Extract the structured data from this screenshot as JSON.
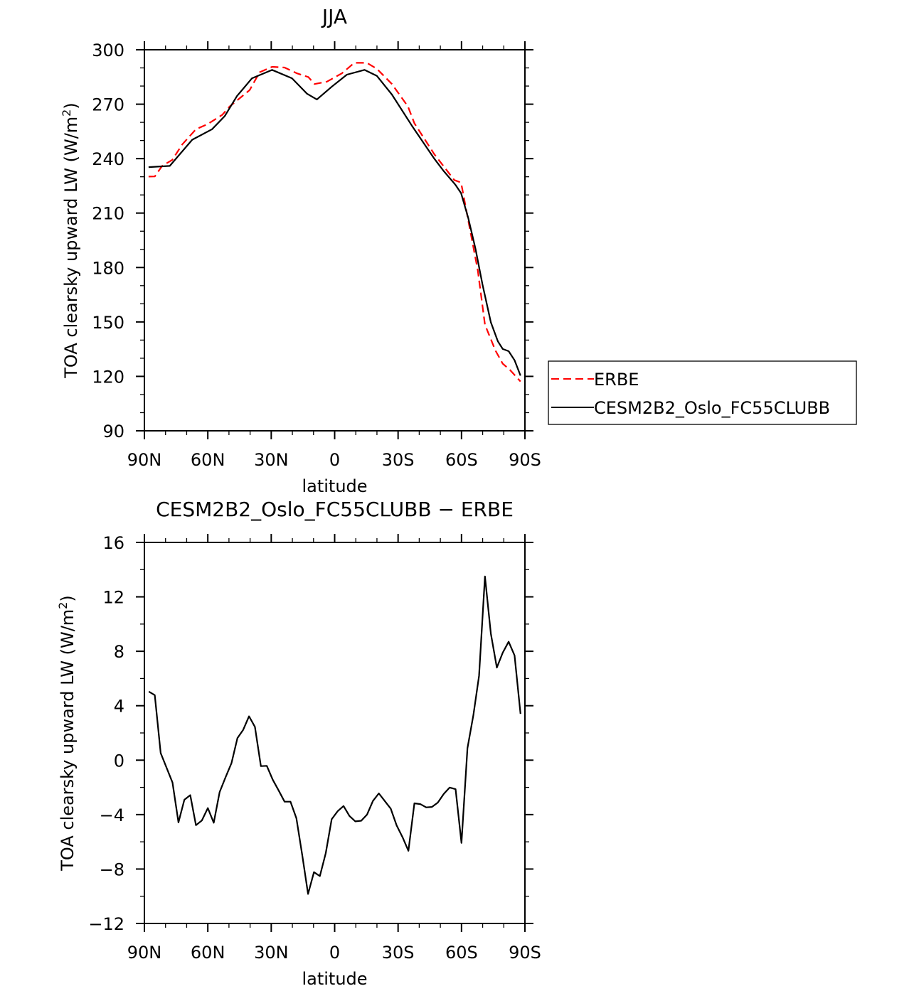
{
  "colors": {
    "erbe": "#ff0000",
    "model": "#000000"
  },
  "chart_data": [
    {
      "type": "line",
      "title": "JJA",
      "xlabel": "latitude",
      "ylabel": "TOA clearsky upward LW (W/m",
      "ylabel_sup": "2",
      "ylabel_end": ")",
      "xlim": [
        90,
        -90
      ],
      "ylim": [
        90,
        300
      ],
      "xticks": [
        90,
        60,
        30,
        0,
        -30,
        -60,
        -90
      ],
      "xtick_labels": [
        "90N",
        "60N",
        "30N",
        "0",
        "30S",
        "60S",
        "90S"
      ],
      "yticks": [
        90,
        120,
        150,
        180,
        210,
        240,
        270,
        300
      ],
      "ytick_labels": [
        "90",
        "120",
        "150",
        "180",
        "210",
        "240",
        "270",
        "300"
      ],
      "legend": {
        "placement": "right",
        "entries": [
          "ERBE",
          "CESM2B2_Oslo_FC55CLUBB"
        ]
      },
      "series": [
        {
          "name": "ERBE",
          "style": "dashed",
          "x": [
            88.0,
            85.1,
            81.6,
            76.8,
            72.1,
            65.6,
            60.3,
            53.2,
            49.7,
            40.2,
            35.5,
            29.6,
            23.7,
            17.8,
            12.5,
            9.5,
            3.7,
            -3.4,
            -9.3,
            -15.2,
            -20.0,
            -27.1,
            -34.7,
            -37.7,
            -47.1,
            -56.6,
            -59.8,
            -63.2,
            -67.7,
            -71.1,
            -76.1,
            -79.5,
            -82.8,
            -87.9
          ],
          "y": [
            230.1,
            230.2,
            236.0,
            239.3,
            247.8,
            256.2,
            258.9,
            264.1,
            268.7,
            277.8,
            287.6,
            290.6,
            290.2,
            287.0,
            285.0,
            281.1,
            282.4,
            287.0,
            292.8,
            292.8,
            289.5,
            281.1,
            268.7,
            259.5,
            242.5,
            228.2,
            226.8,
            206.0,
            178.5,
            148.5,
            134.1,
            127.0,
            123.7,
            117.2
          ]
        },
        {
          "name": "CESM2B2_Oslo_FC55CLUBB",
          "style": "solid",
          "x": [
            88.0,
            78.0,
            67.4,
            58.0,
            52.0,
            46.2,
            39.1,
            29.6,
            20.2,
            13.1,
            8.4,
            1.3,
            -5.8,
            -14.1,
            -20.0,
            -27.1,
            -36.5,
            -47.1,
            -51.4,
            -57.2,
            -59.8,
            -63.2,
            -66.6,
            -69.9,
            -73.9,
            -77.2,
            -79.5,
            -82.3,
            -85.1,
            -87.9
          ],
          "y": [
            235.3,
            236.0,
            250.4,
            256.2,
            263.4,
            274.5,
            284.3,
            288.9,
            284.3,
            275.8,
            272.6,
            279.7,
            286.3,
            288.9,
            285.6,
            275.3,
            258.2,
            240.0,
            233.4,
            225.5,
            221.0,
            207.3,
            190.3,
            170.7,
            149.8,
            139.3,
            135.1,
            133.9,
            128.9,
            120.4
          ]
        }
      ]
    },
    {
      "type": "line",
      "title": "CESM2B2_Oslo_FC55CLUBB − ERBE",
      "xlabel": "latitude",
      "ylabel": "TOA clearsky upward LW (W/m",
      "ylabel_sup": "2",
      "ylabel_end": ")",
      "xlim": [
        90,
        -90
      ],
      "ylim": [
        -12,
        16
      ],
      "xticks": [
        90,
        60,
        30,
        0,
        -30,
        -60,
        -90
      ],
      "xtick_labels": [
        "90N",
        "60N",
        "30N",
        "0",
        "30S",
        "60S",
        "90S"
      ],
      "yticks": [
        -12,
        -8,
        -4,
        0,
        4,
        8,
        12,
        16
      ],
      "ytick_labels": [
        "−12",
        "−8",
        "−4",
        "0",
        "4",
        "8",
        "12",
        "16"
      ],
      "series": [
        {
          "name": "CESM2B2_Oslo_FC55CLUBB - ERBE",
          "style": "solid",
          "x": [
            87.9,
            85.1,
            82.3,
            79.5,
            76.7,
            73.9,
            71.1,
            68.3,
            65.6,
            62.8,
            60.0,
            57.2,
            54.4,
            51.6,
            48.8,
            46.0,
            43.3,
            40.5,
            37.7,
            34.9,
            32.1,
            29.3,
            26.5,
            23.7,
            20.9,
            18.1,
            15.3,
            12.6,
            9.8,
            7.0,
            4.2,
            1.4,
            -1.4,
            -4.2,
            -7.0,
            -9.8,
            -12.6,
            -15.3,
            -18.1,
            -20.9,
            -23.7,
            -26.5,
            -29.3,
            -32.1,
            -34.9,
            -37.7,
            -40.5,
            -43.3,
            -46.0,
            -48.8,
            -51.6,
            -54.4,
            -57.2,
            -60.0,
            -62.8,
            -65.6,
            -68.3,
            -71.1,
            -73.9,
            -76.7,
            -79.5,
            -82.3,
            -85.1,
            -87.9
          ],
          "y": [
            5.04,
            4.78,
            0.52,
            -0.56,
            -1.64,
            -4.57,
            -2.91,
            -2.57,
            -4.78,
            -4.43,
            -3.52,
            -4.6,
            -2.34,
            -1.26,
            -0.21,
            1.62,
            2.22,
            3.22,
            2.45,
            -0.44,
            -0.42,
            -1.43,
            -2.22,
            -3.05,
            -3.05,
            -4.27,
            -7.0,
            -9.83,
            -8.23,
            -8.52,
            -6.83,
            -4.34,
            -3.75,
            -3.37,
            -4.1,
            -4.5,
            -4.45,
            -4.0,
            -3.0,
            -2.44,
            -3.0,
            -3.56,
            -4.79,
            -5.66,
            -6.66,
            -3.17,
            -3.23,
            -3.47,
            -3.44,
            -3.12,
            -2.48,
            -2.01,
            -2.13,
            -6.08,
            0.88,
            3.3,
            6.2,
            13.5,
            9.3,
            6.8,
            7.9,
            8.7,
            7.7,
            3.4
          ]
        }
      ]
    }
  ]
}
